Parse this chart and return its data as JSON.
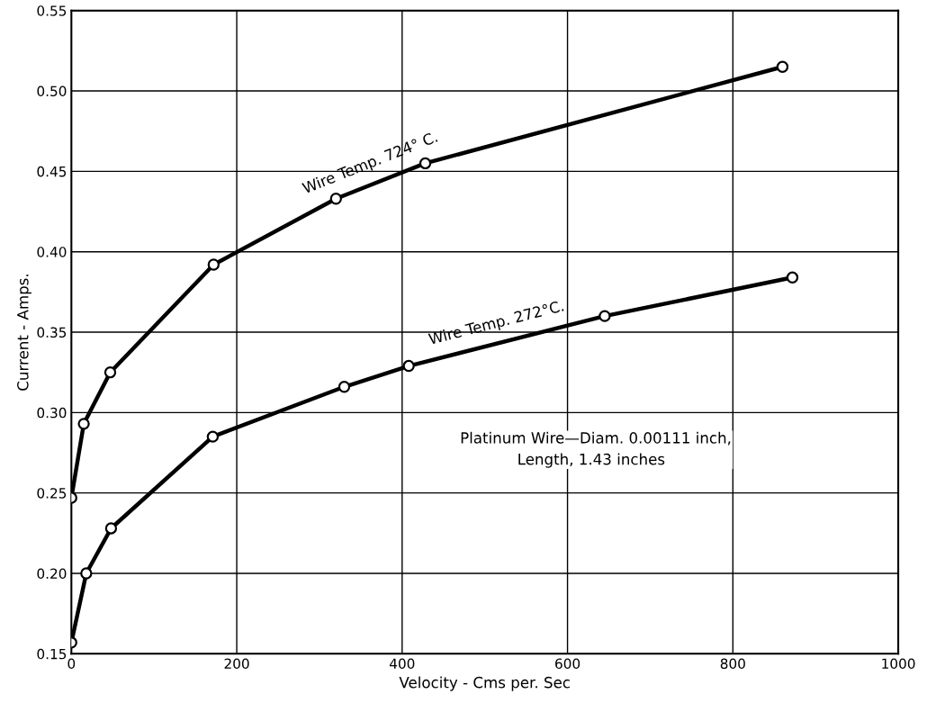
{
  "chart_data": {
    "type": "line",
    "xlabel": "Velocity - Cms per. Sec",
    "ylabel": "Current - Amps.",
    "series": [
      {
        "name": "Wire Temp. 724° C.",
        "color": "#000000",
        "x": [
          0,
          15,
          47,
          172,
          320,
          428,
          860
        ],
        "values": [
          0.247,
          0.293,
          0.325,
          0.392,
          0.433,
          0.455,
          0.515
        ]
      },
      {
        "name": "Wire Temp. 272°C.",
        "color": "#000000",
        "x": [
          0,
          18,
          48,
          171,
          330,
          408,
          645,
          872
        ],
        "values": [
          0.157,
          0.2,
          0.228,
          0.285,
          0.316,
          0.329,
          0.36,
          0.384
        ]
      }
    ],
    "annotations": [
      {
        "text": "Platinum Wire—Diam. 0.00111 inch,\n            Length, 1.43 inches"
      }
    ],
    "xlim": [
      0,
      1000
    ],
    "xticks": [
      0,
      200,
      400,
      600,
      800,
      1000
    ],
    "ylim": [
      0.15,
      0.55
    ],
    "yticks": [
      {
        "value": 0.15,
        "label": "0.15"
      },
      {
        "value": 0.2,
        "label": "0.20"
      },
      {
        "value": 0.25,
        "label": "0.25"
      },
      {
        "value": 0.3,
        "label": "0.30"
      },
      {
        "value": 0.35,
        "label": "0.35"
      },
      {
        "value": 0.4,
        "label": "0.40"
      },
      {
        "value": 0.45,
        "label": "0.45"
      },
      {
        "value": 0.5,
        "label": "0.50"
      },
      {
        "value": 0.55,
        "label": "0.55"
      }
    ],
    "grid": true,
    "marker": "circle",
    "line_style": "solid",
    "legend": false
  }
}
